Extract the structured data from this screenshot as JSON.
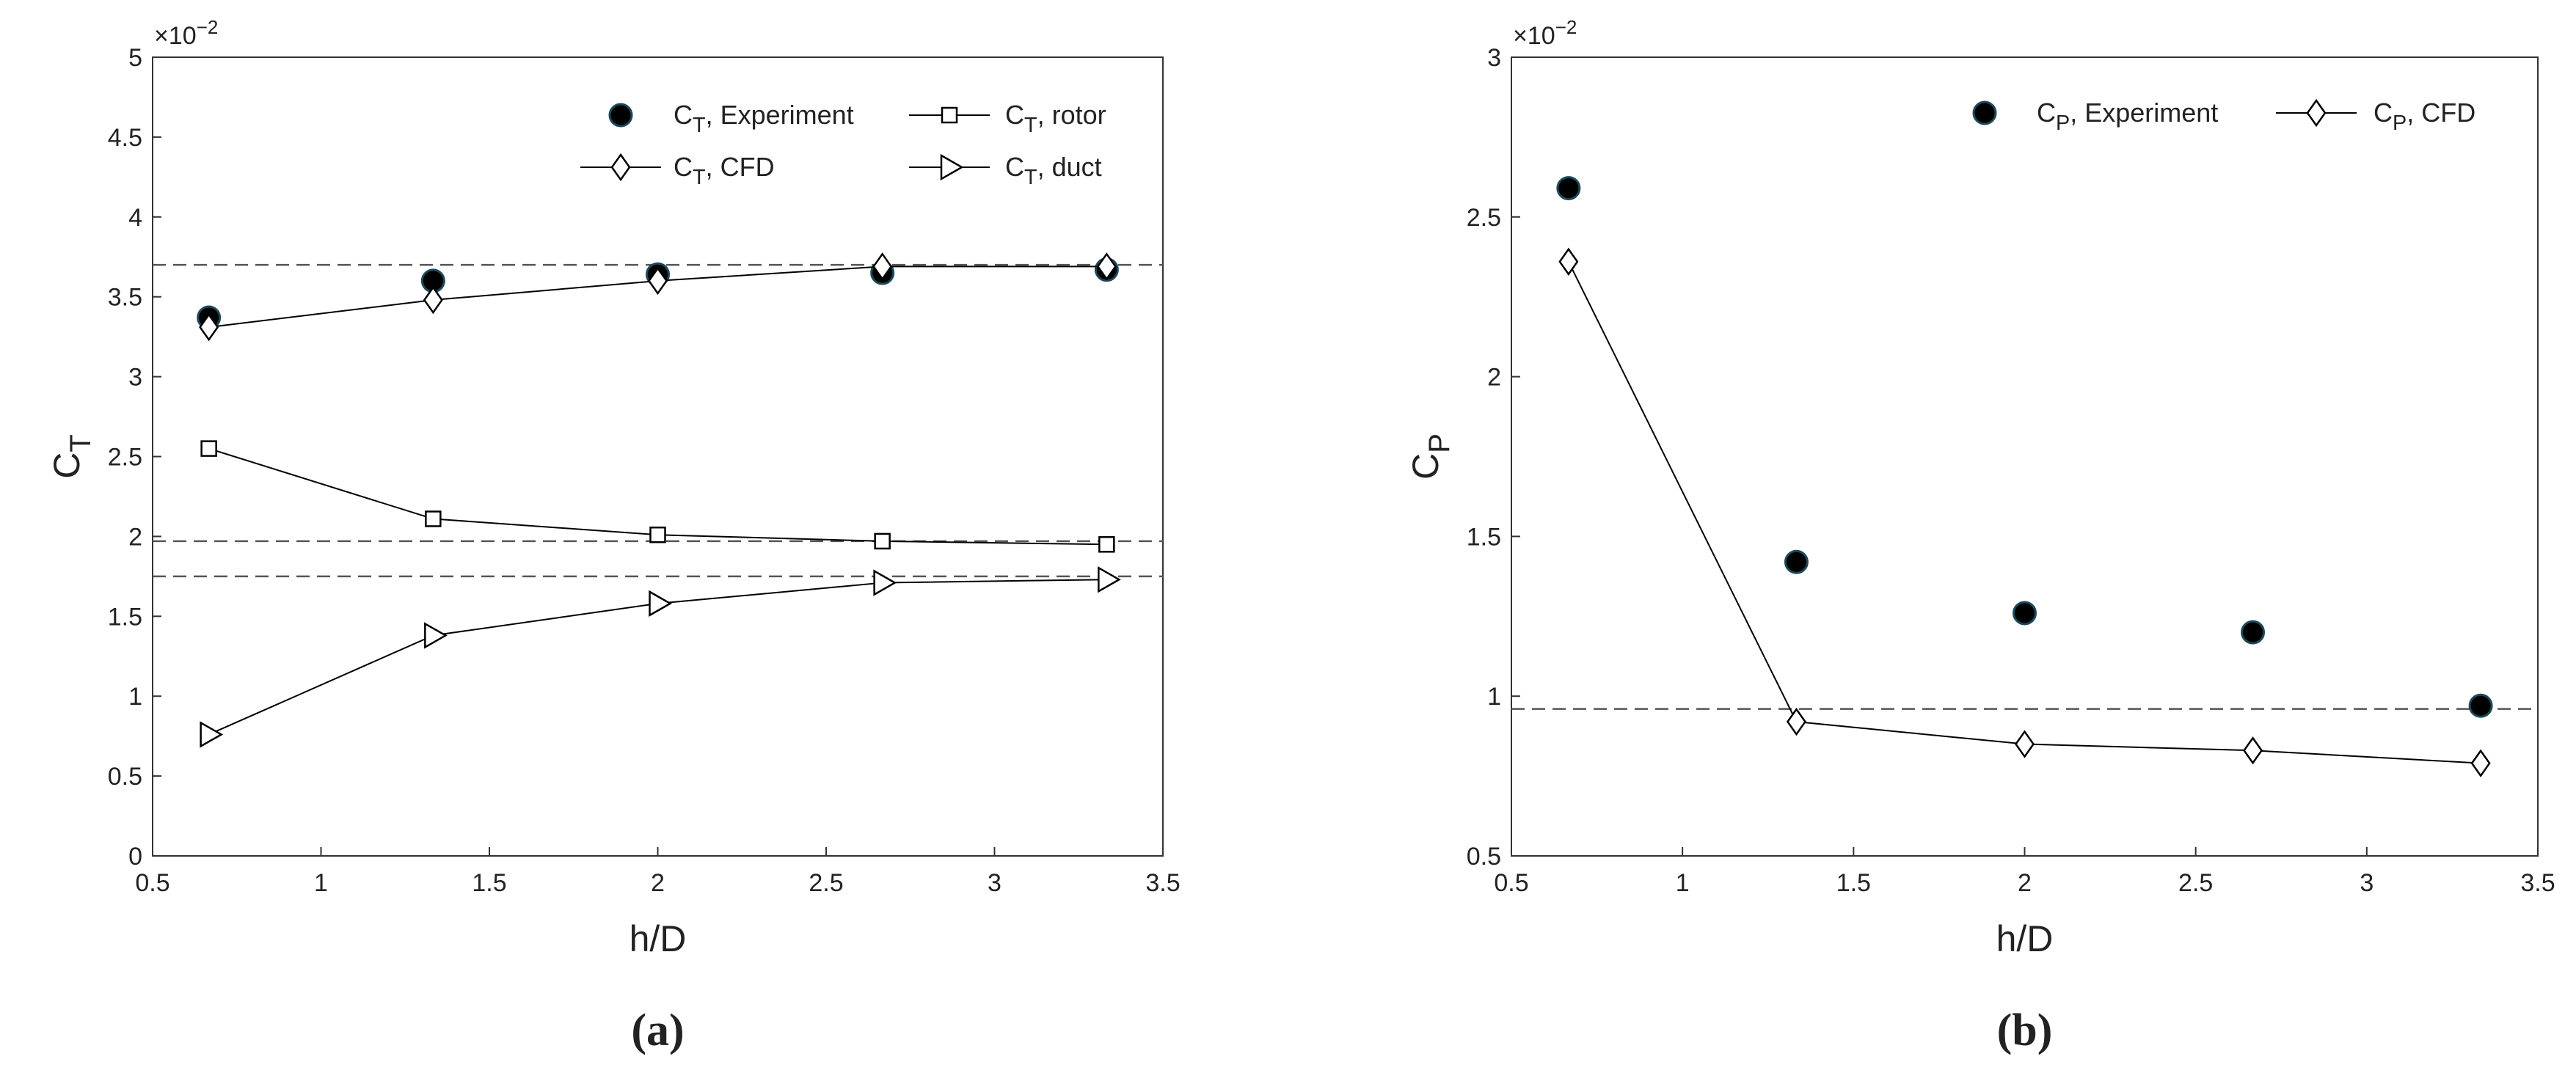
{
  "chart_data": [
    {
      "type": "line",
      "caption": "(a)",
      "xlabel": "h/D",
      "ylabel": "CT",
      "multiplier": "×10",
      "multiplier_exp": "−2",
      "xlim": [
        0.5,
        3.5
      ],
      "xticks": [
        0.5,
        1,
        1.5,
        2,
        2.5,
        3,
        3.5
      ],
      "ylim": [
        0,
        5
      ],
      "yticks": [
        0,
        0.5,
        1,
        1.5,
        2,
        2.5,
        3,
        3.5,
        4,
        4.5,
        5
      ],
      "x": [
        0.667,
        1.333,
        2,
        2.667,
        3.333
      ],
      "reference_lines": [
        3.7,
        1.97,
        1.75
      ],
      "series": [
        {
          "name": "CT, Experiment",
          "color": "#000000",
          "marker": "circle",
          "line": false,
          "values": [
            3.37,
            3.6,
            3.64,
            3.65,
            3.67
          ]
        },
        {
          "name": "CT, rotor",
          "color": "#000000",
          "marker": "square",
          "line": true,
          "values": [
            2.55,
            2.11,
            2.01,
            1.97,
            1.95
          ]
        },
        {
          "name": "CT, CFD",
          "color": "#000000",
          "marker": "diamond",
          "line": true,
          "values": [
            3.31,
            3.48,
            3.6,
            3.69,
            3.69
          ]
        },
        {
          "name": "CT, duct",
          "color": "#000000",
          "marker": "triangle-right",
          "line": true,
          "values": [
            0.76,
            1.38,
            1.58,
            1.71,
            1.73
          ]
        }
      ]
    },
    {
      "type": "line",
      "caption": "(b)",
      "xlabel": "h/D",
      "ylabel": "CP",
      "multiplier": "×10",
      "multiplier_exp": "−2",
      "xlim": [
        0.5,
        3.5
      ],
      "xticks": [
        0.5,
        1,
        1.5,
        2,
        2.5,
        3,
        3.5
      ],
      "ylim": [
        0.5,
        3
      ],
      "yticks": [
        0.5,
        1,
        1.5,
        2,
        2.5,
        3
      ],
      "x": [
        0.667,
        1.333,
        2,
        2.667,
        3.333
      ],
      "reference_lines": [
        0.96
      ],
      "series": [
        {
          "name": "CP, Experiment",
          "color": "#000000",
          "marker": "circle",
          "line": false,
          "values": [
            2.59,
            1.42,
            1.26,
            1.2,
            0.97
          ]
        },
        {
          "name": "CP, CFD",
          "color": "#000000",
          "marker": "diamond",
          "line": true,
          "values": [
            2.36,
            0.92,
            0.85,
            0.83,
            0.79
          ]
        }
      ]
    }
  ]
}
